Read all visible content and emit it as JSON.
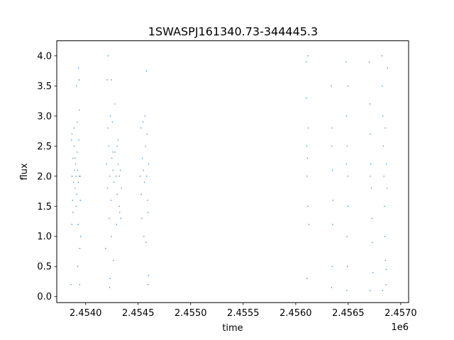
{
  "chart_data": {
    "type": "scatter",
    "title": "1SWASPJ161340.73-344445.3",
    "xlabel": "time",
    "ylabel": "flux",
    "x_offset_label": "1e6",
    "xlim": [
      2453725,
      2457075
    ],
    "ylim": [
      -0.1,
      4.25
    ],
    "x_ticks": [
      {
        "value": 2454000,
        "label": "2.4540"
      },
      {
        "value": 2454500,
        "label": "2.4545"
      },
      {
        "value": 2455000,
        "label": "2.4550"
      },
      {
        "value": 2455500,
        "label": "2.4555"
      },
      {
        "value": 2456000,
        "label": "2.4560"
      },
      {
        "value": 2456500,
        "label": "2.4565"
      },
      {
        "value": 2457000,
        "label": "2.4570"
      }
    ],
    "y_ticks": [
      {
        "value": 0.0,
        "label": "0.0"
      },
      {
        "value": 0.5,
        "label": "0.5"
      },
      {
        "value": 1.0,
        "label": "1.0"
      },
      {
        "value": 1.5,
        "label": "1.5"
      },
      {
        "value": 2.0,
        "label": "2.0"
      },
      {
        "value": 2.5,
        "label": "2.5"
      },
      {
        "value": 3.0,
        "label": "3.0"
      },
      {
        "value": 3.5,
        "label": "3.5"
      },
      {
        "value": 4.0,
        "label": "4.0"
      }
    ],
    "grid": false,
    "series": [
      {
        "color": "#1f77b4",
        "points": [
          [
            2453870,
            2.0
          ],
          [
            2453875,
            1.6
          ],
          [
            2453880,
            2.3
          ],
          [
            2453885,
            1.9
          ],
          [
            2453890,
            2.5
          ],
          [
            2453895,
            2.1
          ],
          [
            2453900,
            1.8
          ],
          [
            2453905,
            2.2
          ],
          [
            2453910,
            2.0
          ],
          [
            2453915,
            1.7
          ],
          [
            2453920,
            2.4
          ],
          [
            2453925,
            2.1
          ],
          [
            2453930,
            1.9
          ],
          [
            2453935,
            2.6
          ],
          [
            2453940,
            2.0
          ],
          [
            2453870,
            2.7
          ],
          [
            2453880,
            1.4
          ],
          [
            2453890,
            2.8
          ],
          [
            2453900,
            2.3
          ],
          [
            2453910,
            1.5
          ],
          [
            2453920,
            2.9
          ],
          [
            2453930,
            1.2
          ],
          [
            2453940,
            3.1
          ],
          [
            2453945,
            0.8
          ],
          [
            2453950,
            1.6
          ],
          [
            2453938,
            3.6
          ],
          [
            2453944,
            0.2
          ],
          [
            2453860,
            0.2
          ],
          [
            2453865,
            2.6
          ],
          [
            2453912,
            3.5
          ],
          [
            2453925,
            0.5
          ],
          [
            2453932,
            3.8
          ],
          [
            2453948,
            2.0
          ],
          [
            2453952,
            1.0
          ],
          [
            2453868,
            1.2
          ],
          [
            2454200,
            2.2
          ],
          [
            2454210,
            1.8
          ],
          [
            2454220,
            2.5
          ],
          [
            2454230,
            2.0
          ],
          [
            2454240,
            1.6
          ],
          [
            2454250,
            2.3
          ],
          [
            2454260,
            2.1
          ],
          [
            2454270,
            1.9
          ],
          [
            2454280,
            2.4
          ],
          [
            2454290,
            2.0
          ],
          [
            2454300,
            1.7
          ],
          [
            2454310,
            2.2
          ],
          [
            2454320,
            1.5
          ],
          [
            2454330,
            2.1
          ],
          [
            2454210,
            2.8
          ],
          [
            2454225,
            1.3
          ],
          [
            2454235,
            3.0
          ],
          [
            2454245,
            1.0
          ],
          [
            2454255,
            2.9
          ],
          [
            2454265,
            0.6
          ],
          [
            2454280,
            3.2
          ],
          [
            2454295,
            1.2
          ],
          [
            2454310,
            2.6
          ],
          [
            2454325,
            1.4
          ],
          [
            2454205,
            3.6
          ],
          [
            2454215,
            4.0
          ],
          [
            2454228,
            0.15
          ],
          [
            2454232,
            0.3
          ],
          [
            2454245,
            3.6
          ],
          [
            2454190,
            0.8
          ],
          [
            2454260,
            2.4
          ],
          [
            2454300,
            2.5
          ],
          [
            2454320,
            2.0
          ],
          [
            2454335,
            1.3
          ],
          [
            2454340,
            1.8
          ],
          [
            2454520,
            2.0
          ],
          [
            2454530,
            1.7
          ],
          [
            2454540,
            2.3
          ],
          [
            2454550,
            2.1
          ],
          [
            2454560,
            1.9
          ],
          [
            2454570,
            2.5
          ],
          [
            2454580,
            2.0
          ],
          [
            2454590,
            1.6
          ],
          [
            2454600,
            2.2
          ],
          [
            2454525,
            2.8
          ],
          [
            2454535,
            1.3
          ],
          [
            2454545,
            2.9
          ],
          [
            2454555,
            1.0
          ],
          [
            2454565,
            3.0
          ],
          [
            2454575,
            0.9
          ],
          [
            2454585,
            2.7
          ],
          [
            2454595,
            1.4
          ],
          [
            2454578,
            3.75
          ],
          [
            2454592,
            0.2
          ],
          [
            2454598,
            0.35
          ],
          [
            2456100,
            3.9
          ],
          [
            2456105,
            2.5
          ],
          [
            2456110,
            2.0
          ],
          [
            2456115,
            1.5
          ],
          [
            2456120,
            2.8
          ],
          [
            2456125,
            1.2
          ],
          [
            2456108,
            0.3
          ],
          [
            2456118,
            4.0
          ],
          [
            2456112,
            2.3
          ],
          [
            2456102,
            3.3
          ],
          [
            2456340,
            3.5
          ],
          [
            2456345,
            2.8
          ],
          [
            2456350,
            2.1
          ],
          [
            2456355,
            1.6
          ],
          [
            2456348,
            0.5
          ],
          [
            2456342,
            0.15
          ],
          [
            2456352,
            1.2
          ],
          [
            2456344,
            2.5
          ],
          [
            2456480,
            3.9
          ],
          [
            2456485,
            3.0
          ],
          [
            2456490,
            2.5
          ],
          [
            2456495,
            2.0
          ],
          [
            2456500,
            1.5
          ],
          [
            2456488,
            1.0
          ],
          [
            2456492,
            0.5
          ],
          [
            2456486,
            0.1
          ],
          [
            2456498,
            3.5
          ],
          [
            2456482,
            2.2
          ],
          [
            2456700,
            3.9
          ],
          [
            2456705,
            3.2
          ],
          [
            2456710,
            2.7
          ],
          [
            2456715,
            2.2
          ],
          [
            2456720,
            1.8
          ],
          [
            2456725,
            1.3
          ],
          [
            2456730,
            0.9
          ],
          [
            2456735,
            0.4
          ],
          [
            2456708,
            0.1
          ],
          [
            2456712,
            2.0
          ],
          [
            2456820,
            4.0
          ],
          [
            2456825,
            3.5
          ],
          [
            2456830,
            3.0
          ],
          [
            2456835,
            2.5
          ],
          [
            2456840,
            2.0
          ],
          [
            2456845,
            1.5
          ],
          [
            2456850,
            1.0
          ],
          [
            2456855,
            0.6
          ],
          [
            2456860,
            0.2
          ],
          [
            2456865,
            2.2
          ],
          [
            2456870,
            1.8
          ],
          [
            2456875,
            3.8
          ],
          [
            2456828,
            0.1
          ],
          [
            2456852,
            2.8
          ],
          [
            2456862,
            0.45
          ]
        ]
      }
    ]
  }
}
